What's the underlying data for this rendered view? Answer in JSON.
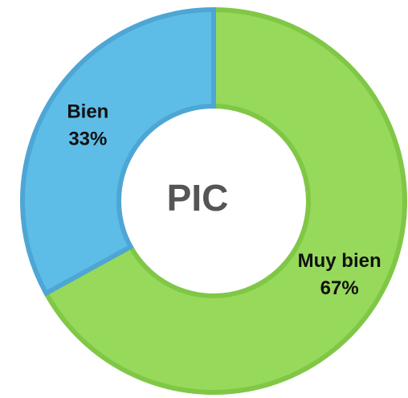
{
  "chart_data": {
    "type": "donut",
    "center_text": "PIC",
    "categories": [
      "Muy bien",
      "Bien"
    ],
    "values": [
      67,
      33
    ],
    "value_labels": [
      "67%",
      "33%"
    ],
    "colors": [
      "#97d95b",
      "#5ebde7"
    ],
    "border_colors": [
      "#80c746",
      "#4ea6d4"
    ]
  }
}
